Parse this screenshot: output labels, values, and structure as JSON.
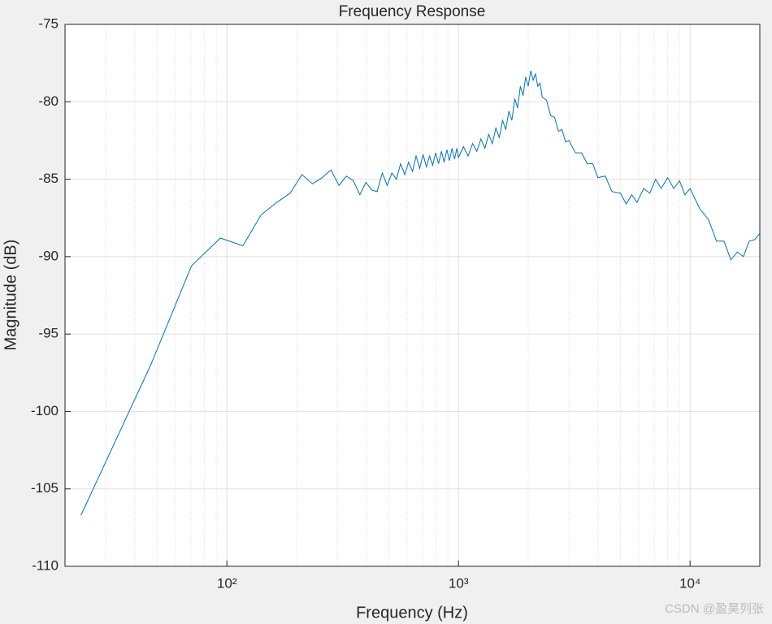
{
  "chart_data": {
    "type": "line",
    "title": "Frequency Response",
    "x_label": "Frequency (Hz)",
    "y_label": "Magnitude (dB)",
    "x": [
      23.44,
      46.88,
      70.31,
      93.75,
      117.2,
      140.6,
      164.1,
      187.5,
      210.9,
      234.4,
      257.8,
      281.3,
      304.7,
      328.1,
      351.6,
      375,
      398.4,
      421.9,
      445.3,
      468.8,
      492.2,
      515.6,
      539,
      562.5,
      586,
      609,
      633,
      656,
      680,
      703,
      727,
      750,
      773,
      797,
      820,
      844,
      867,
      891,
      914,
      938,
      961,
      984,
      1000,
      1050,
      1100,
      1150,
      1200,
      1250,
      1300,
      1350,
      1400,
      1450,
      1500,
      1550,
      1600,
      1650,
      1700,
      1750,
      1800,
      1850,
      1900,
      1950,
      2000,
      2050,
      2100,
      2150,
      2200,
      2250,
      2300,
      2400,
      2500,
      2600,
      2700,
      2800,
      2900,
      3000,
      3200,
      3400,
      3600,
      3800,
      4000,
      4300,
      4600,
      5000,
      5300,
      5600,
      5900,
      6300,
      6700,
      7100,
      7500,
      8000,
      8500,
      9000,
      9500,
      10000,
      11000,
      12000,
      13000,
      14000,
      15000,
      16000,
      17000,
      18000,
      19000,
      20000
    ],
    "values": [
      -106.7,
      -97.0,
      -90.6,
      -88.8,
      -89.3,
      -87.3,
      -86.5,
      -85.9,
      -84.7,
      -85.3,
      -84.9,
      -84.4,
      -85.4,
      -84.8,
      -85.1,
      -86.0,
      -85.2,
      -85.7,
      -85.8,
      -84.6,
      -85.4,
      -84.6,
      -85.0,
      -84.0,
      -84.7,
      -83.9,
      -84.5,
      -83.5,
      -84.3,
      -83.4,
      -84.2,
      -83.5,
      -84.1,
      -83.3,
      -84.0,
      -83.2,
      -83.9,
      -83.1,
      -83.8,
      -83.0,
      -83.7,
      -83.0,
      -83.6,
      -82.9,
      -83.5,
      -82.7,
      -83.2,
      -82.4,
      -83.0,
      -82.1,
      -82.7,
      -81.7,
      -82.3,
      -81.2,
      -81.8,
      -80.6,
      -81.2,
      -79.8,
      -80.4,
      -79.0,
      -79.6,
      -78.4,
      -79.0,
      -78.0,
      -78.6,
      -78.2,
      -79.0,
      -78.8,
      -79.7,
      -79.9,
      -80.9,
      -81.0,
      -81.9,
      -81.8,
      -82.6,
      -82.5,
      -83.3,
      -83.3,
      -84.0,
      -84.0,
      -84.9,
      -84.8,
      -85.8,
      -85.9,
      -86.6,
      -86.0,
      -86.5,
      -85.6,
      -85.9,
      -85.0,
      -85.6,
      -84.9,
      -85.6,
      -85.1,
      -86.0,
      -85.6,
      -86.9,
      -87.6,
      -89.0,
      -89.0,
      -90.2,
      -89.7,
      -90.0,
      -89.0,
      -88.9,
      -88.5
    ],
    "color": "#0072bd",
    "x_scale": "log",
    "xlim": [
      20,
      20000
    ],
    "xticks": [
      {
        "value": 100,
        "label": "10²"
      },
      {
        "value": 1000,
        "label": "10³"
      },
      {
        "value": 10000,
        "label": "10⁴"
      }
    ],
    "x_minor_grid": [
      30,
      40,
      50,
      60,
      70,
      80,
      90,
      200,
      300,
      400,
      500,
      600,
      700,
      800,
      900,
      2000,
      3000,
      4000,
      5000,
      6000,
      7000,
      8000,
      9000
    ],
    "ylim": [
      -110,
      -75
    ],
    "yticks": [
      -110,
      -105,
      -100,
      -95,
      -90,
      -85,
      -80,
      -75
    ],
    "grid": true,
    "watermark": "CSDN @盈昊列张"
  }
}
